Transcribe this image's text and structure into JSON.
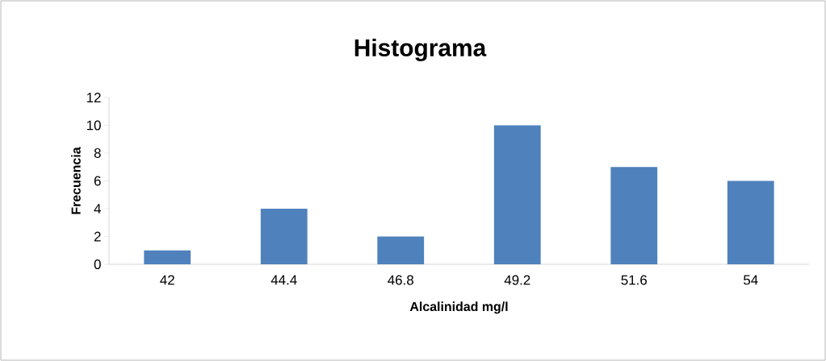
{
  "chart_data": {
    "type": "bar",
    "title": "Histograma",
    "xlabel": "Alcalinidad mg/l",
    "ylabel": "Frecuencia",
    "categories": [
      "42",
      "44.4",
      "46.8",
      "49.2",
      "51.6",
      "54"
    ],
    "values": [
      1,
      4,
      2,
      10,
      7,
      6
    ],
    "color": "#4f81bd",
    "ylim": [
      0,
      12
    ],
    "yticks": [
      0,
      2,
      4,
      6,
      8,
      10,
      12
    ],
    "grid": false
  }
}
